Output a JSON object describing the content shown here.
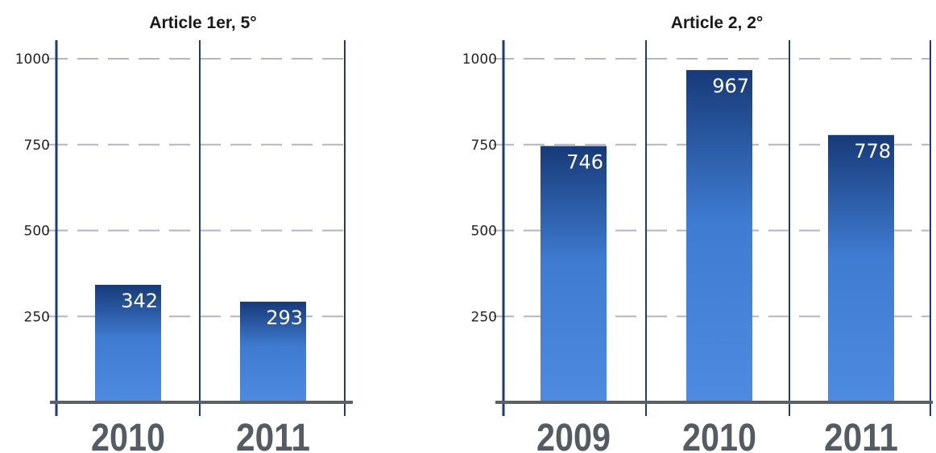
{
  "chart_data": [
    {
      "type": "bar",
      "title": "Article 1er, 5°",
      "categories": [
        "2010",
        "2011"
      ],
      "values": [
        342,
        293
      ],
      "ylim": [
        0,
        1000
      ],
      "yticks": [
        "1000",
        "750",
        "500",
        "250"
      ],
      "grid": true
    },
    {
      "type": "bar",
      "title": "Article 2, 2°",
      "categories": [
        "2009",
        "2010",
        "2011"
      ],
      "values": [
        746,
        967,
        778
      ],
      "ylim": [
        0,
        1000
      ],
      "yticks": [
        "1000",
        "750",
        "500",
        "250"
      ],
      "grid": true
    }
  ],
  "colors": {
    "bar_top": "#173a78",
    "bar_mid": "#3f7bd1",
    "bar_bottom": "#4e8ae0",
    "axis": "#1e3a7a",
    "grid": "#b6b3c6",
    "baseline": "#5a6068"
  }
}
